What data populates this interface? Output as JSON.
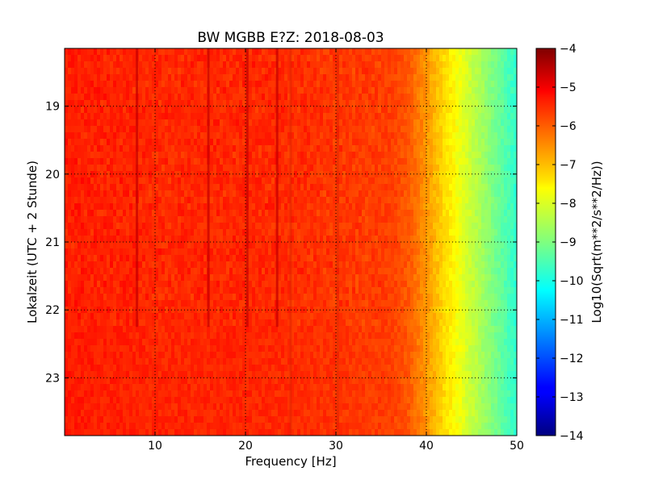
{
  "chart_data": {
    "type": "heatmap",
    "title": "BW MGBB E?Z: 2018-08-03",
    "xlabel": "Frequency [Hz]",
    "ylabel": "Lokalzeit (UTC + 2 Stunde)",
    "xlim": [
      0,
      50
    ],
    "ylim": [
      18.15,
      23.85
    ],
    "y_axis_inverted": true,
    "x_ticks": [
      10,
      20,
      30,
      40,
      50
    ],
    "x_tick_labels": [
      "10",
      "20",
      "30",
      "40",
      "50"
    ],
    "y_ticks": [
      19,
      20,
      21,
      22,
      23
    ],
    "y_tick_labels": [
      "19",
      "20",
      "21",
      "22",
      "23"
    ],
    "grid": true,
    "colormap": "jet",
    "colorbar": {
      "label": "Log10(Sqrt(m**2/s**2/Hz))",
      "min": -14,
      "max": -4,
      "ticks": [
        -4,
        -5,
        -6,
        -7,
        -8,
        -9,
        -10,
        -11,
        -12,
        -13,
        -14
      ],
      "tick_labels": [
        "−4",
        "−5",
        "−6",
        "−7",
        "−8",
        "−9",
        "−10",
        "−11",
        "−12",
        "−13",
        "−14"
      ]
    },
    "spectral_profile": {
      "frequency_hz": [
        0,
        5,
        10,
        20,
        25,
        30,
        33,
        36,
        38,
        40,
        42,
        44,
        46,
        48,
        50
      ],
      "log10_amplitude": [
        -5.5,
        -5.55,
        -5.6,
        -5.6,
        -5.65,
        -5.75,
        -5.8,
        -5.85,
        -6.1,
        -6.7,
        -7.4,
        -8.0,
        -8.6,
        -9.2,
        -9.8
      ]
    },
    "spectral_lines_hz": [
      8,
      15.9,
      20.2,
      23.5,
      25,
      30.2
    ],
    "active_period_hours": [
      18.15,
      22.25
    ]
  }
}
